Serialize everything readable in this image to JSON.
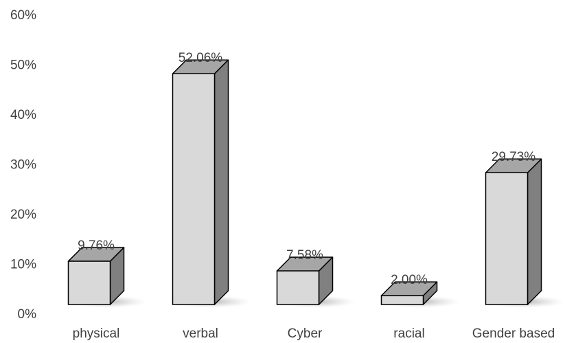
{
  "chart_data": {
    "type": "bar",
    "categories": [
      "physical",
      "verbal",
      "Cyber",
      "racial",
      "Gender based"
    ],
    "values": [
      9.76,
      52.06,
      7.58,
      2.0,
      29.73
    ],
    "data_labels": [
      "9.76%",
      "52.06%",
      "7.58%",
      "2.00%",
      "29.73%"
    ],
    "y_ticks": [
      {
        "value": 0,
        "label": "0%"
      },
      {
        "value": 10,
        "label": "10%"
      },
      {
        "value": 20,
        "label": "20%"
      },
      {
        "value": 30,
        "label": "30%"
      },
      {
        "value": 40,
        "label": "40%"
      },
      {
        "value": 50,
        "label": "50%"
      },
      {
        "value": 60,
        "label": "60%"
      }
    ],
    "ylim": [
      0,
      60
    ],
    "grid": false,
    "legend": "none",
    "style": "3d-column",
    "colors": {
      "front": "#d9d9d9",
      "top": "#a6a6a6",
      "side": "#808080",
      "outline": "#000000",
      "shadow": "#bfbfbf",
      "text": "#404040"
    }
  }
}
